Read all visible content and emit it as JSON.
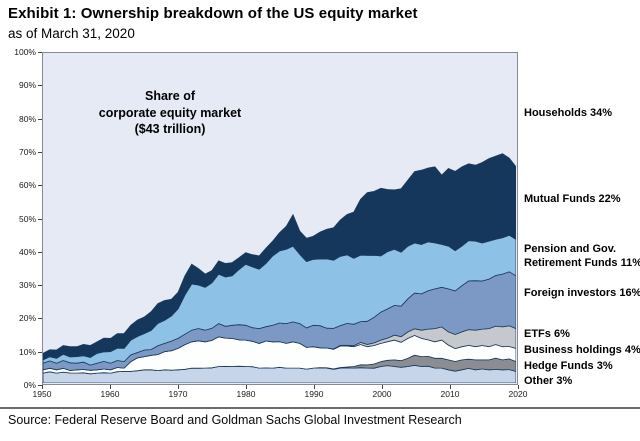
{
  "header": {
    "title": "Exhibit 1: Ownership breakdown of the US equity market",
    "subtitle": "as of March 31, 2020"
  },
  "source_line": "Source: Federal Reserve Board and Goldman Sachs Global Investment Research",
  "legend": {
    "items": [
      {
        "lines": [
          "Households 34%"
        ]
      },
      {
        "lines": [
          "Mutual Funds 22%"
        ]
      },
      {
        "lines": [
          "Pension and Gov.",
          "Retirement Funds 11%"
        ]
      },
      {
        "lines": [
          "Foreign investors 16%"
        ]
      },
      {
        "lines": [
          "ETFs 6%"
        ]
      },
      {
        "lines": [
          "Business holdings 4%"
        ]
      },
      {
        "lines": [
          "Hedge Funds 3%"
        ]
      },
      {
        "lines": [
          "Other 3%"
        ]
      }
    ]
  },
  "chart_data": {
    "type": "area",
    "stacked": true,
    "title": "Exhibit 1: Ownership breakdown of the US equity market",
    "subtitle": "as of March 31, 2020",
    "annotation": {
      "lines": [
        "Share of",
        "corporate equity market",
        "($43 trillion)"
      ]
    },
    "ylim": [
      0,
      100
    ],
    "grid": false,
    "legend_position": "right",
    "plot_background": "#e5eaf4",
    "stroke_color": "#1d3a5a",
    "y_tick_labels": [
      "0%",
      "10%",
      "20%",
      "30%",
      "40%",
      "50%",
      "60%",
      "70%",
      "80%",
      "90%",
      "100%"
    ],
    "x_tick_labels": [
      "1950",
      "1960",
      "1970",
      "1980",
      "1990",
      "2000",
      "2010",
      "2020"
    ],
    "x": [
      1950,
      1952,
      1955,
      1958,
      1960,
      1962,
      1963,
      1965,
      1968,
      1970,
      1972,
      1974,
      1976,
      1978,
      1980,
      1982,
      1984,
      1986,
      1987,
      1988,
      1990,
      1992,
      1994,
      1996,
      1998,
      2000,
      2002,
      2004,
      2006,
      2008,
      2009,
      2010,
      2012,
      2014,
      2016,
      2018,
      2020
    ],
    "series": [
      {
        "name": "other",
        "label": "Other 3%",
        "color": "#c6d5ea",
        "values": [
          3,
          3,
          3,
          3,
          3,
          3.5,
          3.5,
          4,
          4,
          4,
          4.5,
          4.5,
          5,
          5,
          5,
          4.5,
          4.5,
          4.5,
          4.5,
          4.5,
          4.5,
          4.5,
          4.5,
          4.5,
          4.5,
          5,
          5,
          5,
          5,
          4.5,
          4.5,
          4,
          4,
          4,
          4,
          4,
          3.5
        ]
      },
      {
        "name": "hedge_funds",
        "label": "Hedge Funds 3%",
        "color": "#8a8e92",
        "values": [
          0,
          0,
          0,
          0,
          0,
          0,
          0,
          0,
          0,
          0,
          0,
          0,
          0,
          0,
          0,
          0,
          0,
          0,
          0,
          0,
          0,
          0.1,
          0.2,
          0.5,
          1,
          1.5,
          2,
          2.5,
          3,
          3,
          3,
          3,
          3,
          3,
          3,
          3,
          3
        ]
      },
      {
        "name": "business_holdings",
        "label": "Business holdings 4%",
        "color": "#fdfefe",
        "values": [
          1,
          1,
          1,
          1,
          1,
          1,
          3,
          4,
          5.5,
          6.5,
          8,
          8,
          9,
          8.5,
          8,
          7.5,
          8,
          7.5,
          8,
          7.5,
          6.5,
          6,
          6.5,
          6,
          5.5,
          5.5,
          6,
          6,
          5.5,
          5,
          5.5,
          4.5,
          4,
          4,
          4,
          4,
          4
        ]
      },
      {
        "name": "etfs",
        "label": "ETFs 6%",
        "color": "#c5c8cc",
        "values": [
          0,
          0,
          0,
          0,
          0,
          0,
          0,
          0,
          0,
          0,
          0,
          0,
          0,
          0,
          0,
          0,
          0,
          0,
          0,
          0,
          0,
          0,
          0.2,
          0.3,
          0.7,
          1,
          1.5,
          2,
          2.5,
          4,
          4,
          4,
          4.5,
          5,
          5.5,
          6,
          6
        ]
      },
      {
        "name": "foreign_investors",
        "label": "Foreign investors 16%",
        "color": "#7c99c5",
        "values": [
          2,
          2,
          2,
          2,
          2,
          2,
          2,
          2,
          2.5,
          3,
          3.5,
          3.5,
          4,
          4,
          4.5,
          4.5,
          5,
          6,
          6,
          6,
          6.5,
          6,
          6,
          6.5,
          7,
          8.5,
          9,
          10,
          11,
          12,
          12,
          13,
          14,
          15,
          15,
          16,
          16
        ]
      },
      {
        "name": "pension_gov_retirement_funds",
        "label": "Pension and Gov. Retirement Funds 11%",
        "color": "#8dc1e6",
        "values": [
          1,
          1.5,
          2,
          3,
          3.5,
          4,
          4.5,
          5,
          7,
          9,
          14,
          13,
          15,
          15,
          18.5,
          18,
          21,
          22.5,
          23,
          21,
          20,
          21,
          21,
          20,
          20,
          17,
          17,
          16,
          15,
          14,
          13,
          13,
          12,
          12,
          11.5,
          11,
          11
        ]
      },
      {
        "name": "mutual_funds",
        "label": "Mutual Funds 22%",
        "color": "#16375c",
        "values": [
          2,
          2.5,
          3,
          3.5,
          4,
          4.5,
          4.5,
          5,
          6,
          5,
          6,
          4,
          4,
          4,
          3.5,
          4,
          4.5,
          7,
          9.5,
          7,
          7,
          9,
          11,
          14,
          19,
          20.5,
          18,
          20,
          22.5,
          23,
          21,
          23.5,
          24,
          23,
          25,
          25.5,
          22
        ]
      },
      {
        "name": "households",
        "label": "Households 34%",
        "color": "#e5eaf4",
        "background": true,
        "values": [
          91,
          90,
          89,
          87.5,
          86.5,
          85,
          82.5,
          80,
          75,
          72.5,
          64,
          67,
          63,
          63.5,
          60.5,
          61.5,
          57,
          52.5,
          49,
          54,
          55.5,
          53.4,
          50.6,
          48.2,
          42.3,
          41,
          41.5,
          38.5,
          35.5,
          34.5,
          37,
          35,
          34.5,
          34,
          32,
          30.5,
          34.5
        ]
      }
    ]
  }
}
